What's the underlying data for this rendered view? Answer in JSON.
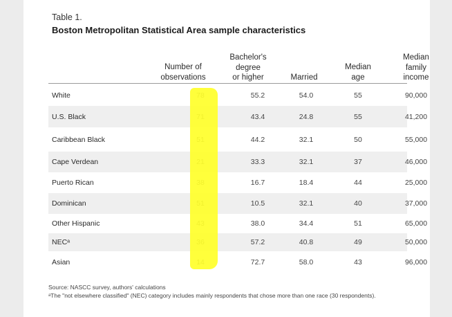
{
  "table": {
    "label": "Table 1.",
    "title": "Boston Metropolitan Statistical Area sample characteristics"
  },
  "columns": {
    "observations": [
      "Number of",
      "observations"
    ],
    "bachelors": [
      "Bachelor's",
      "degree",
      "or higher"
    ],
    "married": [
      "Married"
    ],
    "median_age": [
      "Median",
      "age"
    ],
    "median_income": [
      "Median",
      "family",
      "income"
    ]
  },
  "rows": [
    {
      "group": "White",
      "observations": "78",
      "bachelors": "55.2",
      "married": "54.0",
      "median_age": "55",
      "median_income": "90,000"
    },
    {
      "group": "U.S. Black",
      "observations": "71",
      "bachelors": "43.4",
      "married": "24.8",
      "median_age": "55",
      "median_income": "41,200"
    },
    {
      "group": "Caribbean Black",
      "observations": "51",
      "bachelors": "44.2",
      "married": "32.1",
      "median_age": "50",
      "median_income": "55,000"
    },
    {
      "group": "Cape Verdean",
      "observations": "21",
      "bachelors": "33.3",
      "married": "32.1",
      "median_age": "37",
      "median_income": "46,000"
    },
    {
      "group": "Puerto Rican",
      "observations": "38",
      "bachelors": "16.7",
      "married": "18.4",
      "median_age": "44",
      "median_income": "25,000"
    },
    {
      "group": "Dominican",
      "observations": "51",
      "bachelors": "10.5",
      "married": "32.1",
      "median_age": "40",
      "median_income": "37,000"
    },
    {
      "group": "Other Hispanic",
      "observations": "43",
      "bachelors": "38.0",
      "married": "34.4",
      "median_age": "51",
      "median_income": "65,000"
    },
    {
      "group": "NECᵃ",
      "observations": "36",
      "bachelors": "57.2",
      "married": "40.8",
      "median_age": "49",
      "median_income": "50,000"
    },
    {
      "group": "Asian",
      "observations": "14",
      "bachelors": "72.7",
      "married": "58.0",
      "median_age": "43",
      "median_income": "96,000"
    }
  ],
  "footnotes": {
    "source": "Source: NASCC survey, authors' calculations",
    "note": "ᵃThe \"not elsewhere classified\" (NEC) category includes mainly respondents that chose more than one race (30 respondents)."
  },
  "colors": {
    "highlight": "#ffff2a",
    "row_shade": "#efefef"
  }
}
